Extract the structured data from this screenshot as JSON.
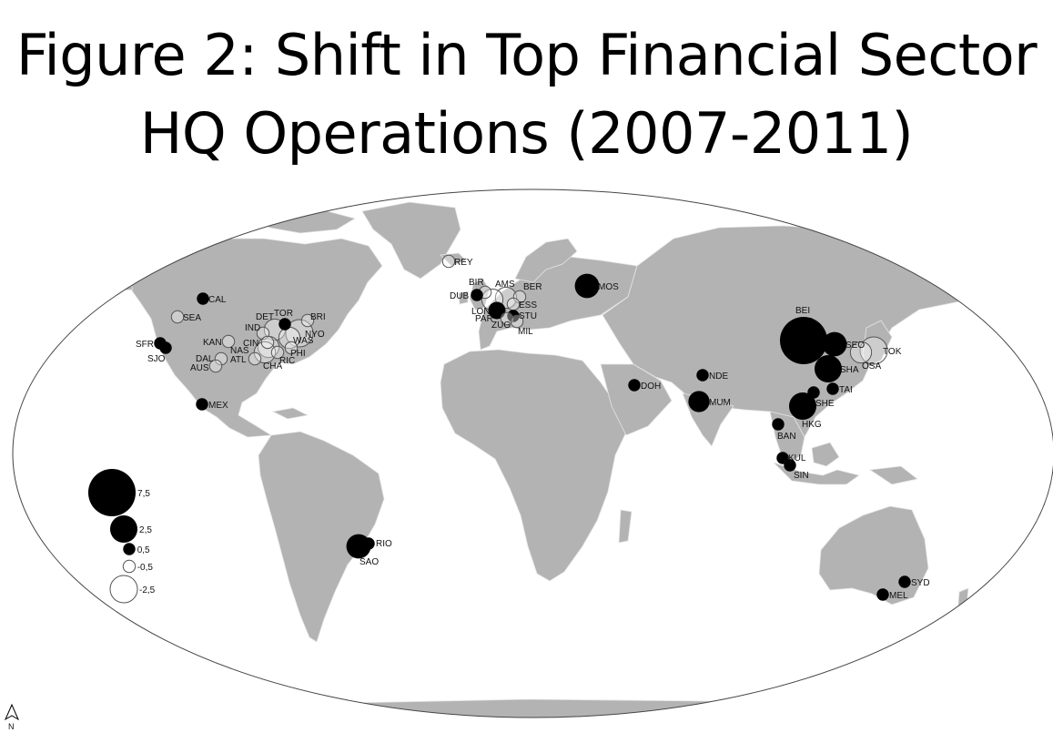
{
  "title": {
    "line1": "Figure 2: Shift in Top Financial Sector",
    "line2": "HQ Operations (2007-2011)"
  },
  "colors": {
    "land": "#b3b3b3",
    "ocean": "#ffffff",
    "positive": "#000000",
    "negative_fill": "#ffffff",
    "negative_stroke": "#555555"
  },
  "legend": {
    "items": [
      {
        "label": "7,5",
        "value": 7.5
      },
      {
        "label": "2,5",
        "value": 2.5
      },
      {
        "label": "0,5",
        "value": 0.5
      },
      {
        "label": "-0,5",
        "value": -0.5
      },
      {
        "label": "-2,5",
        "value": -2.5
      }
    ]
  },
  "north_arrow": {
    "label": "N"
  },
  "cities": [
    {
      "code": "REY",
      "value": -0.5
    },
    {
      "code": "BIR",
      "value": -0.5
    },
    {
      "code": "DUB",
      "value": 0.5
    },
    {
      "code": "AMS",
      "value": -1.5
    },
    {
      "code": "BER",
      "value": -0.5
    },
    {
      "code": "ESS",
      "value": -0.5
    },
    {
      "code": "LON",
      "value": 1.0
    },
    {
      "code": "PAR",
      "value": -1.5
    },
    {
      "code": "STU",
      "value": 0.5
    },
    {
      "code": "ZUG",
      "value": -0.5
    },
    {
      "code": "MIL",
      "value": -0.5
    },
    {
      "code": "MOS",
      "value": 2.0
    },
    {
      "code": "CAL",
      "value": 0.5
    },
    {
      "code": "SEA",
      "value": -0.5
    },
    {
      "code": "TOR",
      "value": 0.5
    },
    {
      "code": "DET",
      "value": -1.5
    },
    {
      "code": "IND",
      "value": -0.5
    },
    {
      "code": "BRI",
      "value": -0.5
    },
    {
      "code": "NYO",
      "value": -2.5
    },
    {
      "code": "WAS",
      "value": -1.5
    },
    {
      "code": "CIN",
      "value": -0.5
    },
    {
      "code": "KAN",
      "value": -0.5
    },
    {
      "code": "NAS",
      "value": -1.5
    },
    {
      "code": "PHI",
      "value": -0.5
    },
    {
      "code": "SFR",
      "value": 0.5
    },
    {
      "code": "SJO",
      "value": 0.5
    },
    {
      "code": "DAL",
      "value": -0.5
    },
    {
      "code": "AUS",
      "value": -0.5
    },
    {
      "code": "ATL",
      "value": -0.5
    },
    {
      "code": "CHA",
      "value": -1.5
    },
    {
      "code": "RIC",
      "value": -0.5
    },
    {
      "code": "MEX",
      "value": 0.5
    },
    {
      "code": "RIO",
      "value": 0.5
    },
    {
      "code": "SAO",
      "value": 2.0
    },
    {
      "code": "DOH",
      "value": 0.5
    },
    {
      "code": "NDE",
      "value": 0.5
    },
    {
      "code": "MUM",
      "value": 1.5
    },
    {
      "code": "BEI",
      "value": 7.5
    },
    {
      "code": "SEO",
      "value": 2.0
    },
    {
      "code": "SHA",
      "value": 2.5
    },
    {
      "code": "TAI",
      "value": 0.5
    },
    {
      "code": "SHE",
      "value": 0.5
    },
    {
      "code": "HKG",
      "value": 2.5
    },
    {
      "code": "BAN",
      "value": 0.5
    },
    {
      "code": "KUL",
      "value": 0.5
    },
    {
      "code": "SIN",
      "value": 0.5
    },
    {
      "code": "TOK",
      "value": -2.5
    },
    {
      "code": "OSA",
      "value": -1.5
    },
    {
      "code": "SYD",
      "value": 0.5
    },
    {
      "code": "MEL",
      "value": 0.5
    }
  ]
}
